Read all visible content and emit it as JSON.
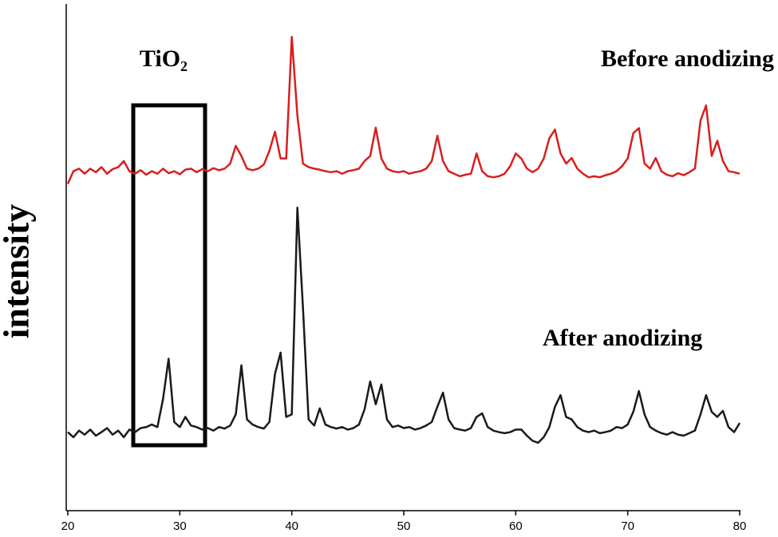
{
  "chart_data": {
    "type": "line",
    "y_label": "intensity",
    "annotation": "TiO₂",
    "x": [
      20,
      20.5,
      21,
      21.5,
      22,
      22.5,
      23,
      23.5,
      24,
      24.5,
      25,
      25.5,
      26,
      26.5,
      27,
      27.5,
      28,
      28.5,
      29,
      29.5,
      30,
      30.5,
      31,
      31.5,
      32,
      32.5,
      33,
      33.5,
      34,
      34.5,
      35,
      35.5,
      36,
      36.5,
      37,
      37.5,
      38,
      38.5,
      39,
      39.5,
      40,
      40.5,
      41,
      41.5,
      42,
      42.5,
      43,
      43.5,
      44,
      44.5,
      45,
      45.5,
      46,
      46.5,
      47,
      47.5,
      48,
      48.5,
      49,
      49.5,
      50,
      50.5,
      51,
      51.5,
      52,
      52.5,
      53,
      53.5,
      54,
      54.5,
      55,
      55.5,
      56,
      56.5,
      57,
      57.5,
      58,
      58.5,
      59,
      59.5,
      60,
      60.5,
      61,
      61.5,
      62,
      62.5,
      63,
      63.5,
      64,
      64.5,
      65,
      65.5,
      66,
      66.5,
      67,
      67.5,
      68,
      68.5,
      69,
      69.5,
      70,
      70.5,
      71,
      71.5,
      72,
      72.5,
      73,
      73.5,
      74,
      74.5,
      75,
      75.5,
      76,
      76.5,
      77,
      77.5,
      78,
      78.5,
      79,
      79.5,
      80
    ],
    "series": [
      {
        "name": "Before anodizing",
        "color": "#d81e1e",
        "values": [
          64.5,
          67,
          67.5,
          66.5,
          67.5,
          66.8,
          67.8,
          66.5,
          67.4,
          67.8,
          69,
          67,
          66.5,
          67.2,
          66.3,
          67,
          66.5,
          67.5,
          66.6,
          67,
          66.4,
          67.3,
          67.5,
          66.8,
          67.4,
          67,
          67.6,
          67.2,
          67.5,
          68.5,
          72,
          70,
          67.5,
          67.2,
          67.5,
          68.3,
          71,
          74.8,
          69.5,
          69.5,
          93.5,
          78,
          68.5,
          67.8,
          67.5,
          67.3,
          67,
          66.8,
          67,
          66.5,
          67,
          67.2,
          67.5,
          69,
          70,
          75.6,
          69.5,
          67.5,
          67,
          66.8,
          67,
          66.5,
          66.8,
          67,
          67.5,
          69,
          74,
          69,
          67,
          66.5,
          66,
          66.3,
          66.5,
          70.5,
          67,
          66,
          65.8,
          66,
          66.5,
          68,
          70.5,
          69.5,
          67.5,
          66.8,
          67.5,
          69.5,
          73.5,
          75.2,
          70.5,
          68.5,
          69.6,
          67.5,
          66.5,
          65.8,
          66,
          65.8,
          66.2,
          66.5,
          67,
          68,
          69.5,
          74.5,
          75.5,
          68.5,
          67.5,
          69.6,
          67,
          66.3,
          66,
          66.6,
          66.2,
          66.8,
          67.5,
          77,
          80,
          70,
          73,
          69,
          67,
          66.8,
          66.5
        ]
      },
      {
        "name": "After anodizing",
        "color": "#1a1a1a",
        "values": [
          15.5,
          14.5,
          15.8,
          15,
          16,
          14.8,
          15.5,
          16.3,
          15,
          15.8,
          14.5,
          16,
          15.5,
          16.3,
          16.5,
          17,
          16.5,
          22,
          30,
          17.5,
          16.5,
          18.5,
          16.8,
          16.5,
          16,
          16.3,
          15.8,
          16.5,
          16.2,
          16.8,
          19,
          28.7,
          18,
          17,
          16.5,
          16.2,
          17.5,
          27,
          31.2,
          18.5,
          19,
          59.8,
          40,
          18,
          16.8,
          20.2,
          17,
          16.5,
          16.2,
          16.5,
          16,
          16.3,
          17,
          20,
          25.5,
          21,
          24.9,
          18,
          16.5,
          16.8,
          16.3,
          16.5,
          16,
          16.3,
          16.8,
          17.5,
          20.5,
          23.3,
          18,
          16.3,
          16,
          15.8,
          16.3,
          18.5,
          19.2,
          16.5,
          15.8,
          15.5,
          15.3,
          15.5,
          16,
          16,
          14.8,
          13.8,
          13.4,
          14.5,
          16.5,
          20.5,
          22.8,
          18.5,
          18,
          16.5,
          15.8,
          15.5,
          15.8,
          15.3,
          15.5,
          15.8,
          16.5,
          16.3,
          17,
          19.5,
          23.6,
          19,
          16.5,
          15.8,
          15.3,
          15,
          15.5,
          15,
          14.8,
          15.3,
          15.8,
          19,
          22.8,
          19.5,
          18.5,
          19.7,
          16.5,
          15.5,
          17.3
        ]
      }
    ],
    "xlim": [
      20,
      80
    ],
    "xticks": [
      20,
      30,
      40,
      50,
      60,
      70,
      80
    ],
    "ylim": [
      0,
      100
    ]
  }
}
